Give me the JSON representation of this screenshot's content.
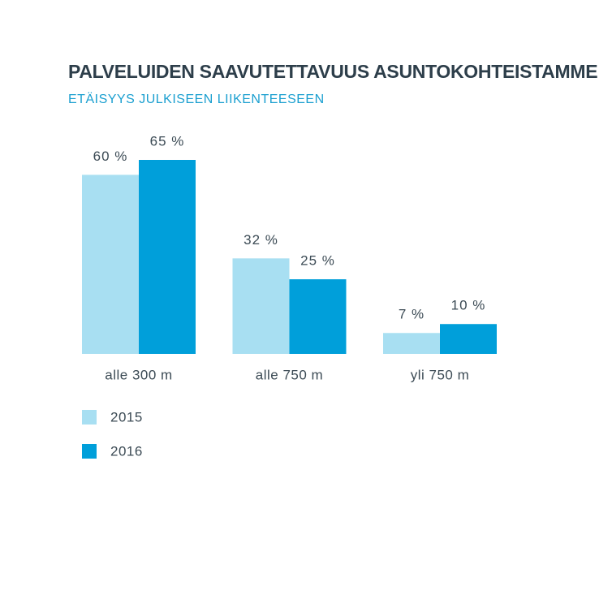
{
  "chart_data": {
    "type": "bar",
    "title": "PALVELUIDEN SAAVUTETTAVUUS ASUNTOKOHTEISTAMME",
    "subtitle": "ETÄISYYS JULKISEEN LIIKENTEESEEN",
    "categories": [
      "alle 300 m",
      "alle 750 m",
      "yli 750 m"
    ],
    "series": [
      {
        "name": "2015",
        "color": "#a8dff2",
        "values": [
          60,
          32,
          7
        ],
        "value_labels": [
          "60 %",
          "32 %",
          "7 %"
        ]
      },
      {
        "name": "2016",
        "color": "#009fda",
        "values": [
          65,
          25,
          10
        ],
        "value_labels": [
          "65 %",
          "25 %",
          "10 %"
        ]
      }
    ]
  }
}
